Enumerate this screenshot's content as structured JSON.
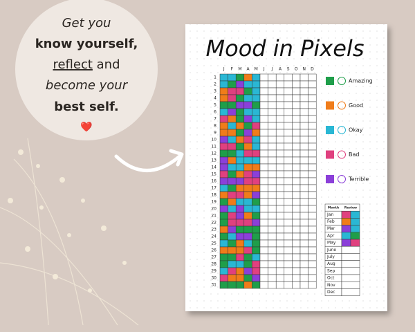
{
  "promo": {
    "line1": "Get you",
    "line2": "know yourself,",
    "line3a": "reflect",
    "line3b": "and",
    "line4": "become your",
    "line5": "best self.",
    "heart": "❤️"
  },
  "sheet": {
    "title": "Mood in Pixels",
    "months": [
      "J",
      "F",
      "M",
      "A",
      "M",
      "J",
      "J",
      "A",
      "S",
      "O",
      "N",
      "D"
    ],
    "days": [
      1,
      2,
      3,
      4,
      5,
      6,
      7,
      8,
      9,
      10,
      11,
      12,
      13,
      14,
      15,
      16,
      17,
      18,
      19,
      20,
      21,
      22,
      23,
      24,
      25,
      26,
      27,
      28,
      29,
      30,
      31
    ],
    "legend": [
      {
        "name": "Amazing",
        "color": "#1f9e4a"
      },
      {
        "name": "Good",
        "color": "#f07c1a"
      },
      {
        "name": "Okay",
        "color": "#2ab7d4"
      },
      {
        "name": "Bad",
        "color": "#e0407f"
      },
      {
        "name": "Terrible",
        "color": "#8b3fd9"
      }
    ],
    "review_header": [
      "Month",
      "Review"
    ],
    "review_months": [
      "Jan",
      "Feb",
      "Mar",
      "Apr",
      "May",
      "June",
      "July",
      "Aug",
      "Sep",
      "Oct",
      "Nov",
      "Dec"
    ]
  }
}
